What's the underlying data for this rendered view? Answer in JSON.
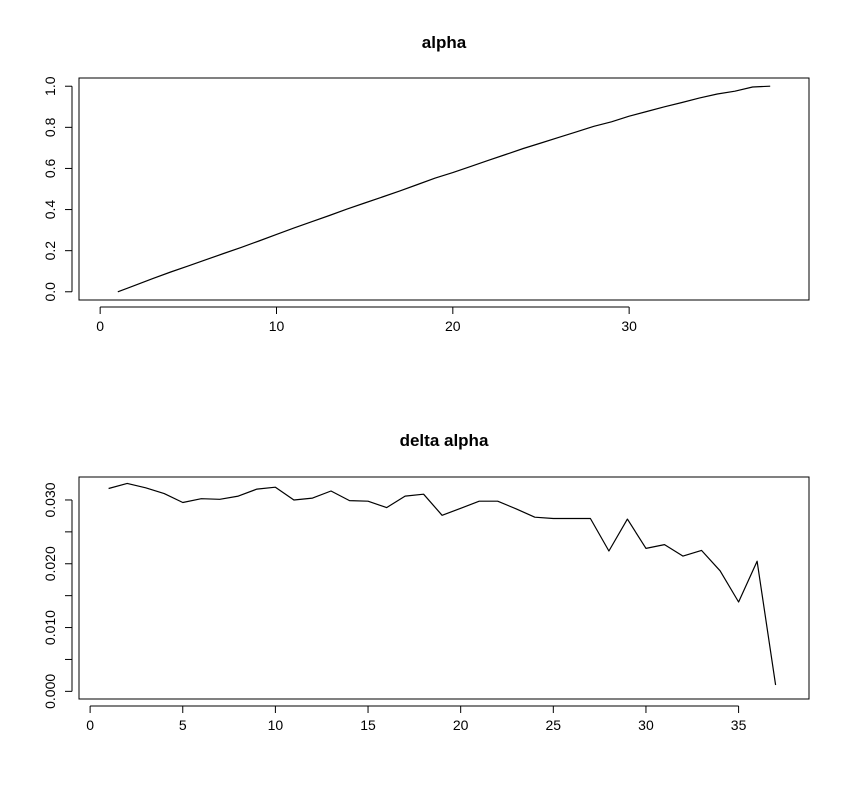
{
  "chart_data": [
    {
      "type": "line",
      "title": "alpha",
      "xlabel": "",
      "ylabel": "",
      "xlim": [
        -1.2,
        40.2
      ],
      "ylim": [
        -0.04,
        1.04
      ],
      "xticks": [
        0,
        10,
        20,
        30
      ],
      "xtick_labels": [
        "0",
        "10",
        "20",
        "30"
      ],
      "yticks": [
        0,
        0.2,
        0.4,
        0.6,
        0.8,
        1.0
      ],
      "ytick_labels": [
        "0.0",
        "0.2",
        "0.4",
        "0.6",
        "0.8",
        "1.0"
      ],
      "grid": false,
      "series": [
        {
          "x": [
            1,
            2,
            3,
            4,
            5,
            6,
            7,
            8,
            9,
            10,
            11,
            12,
            13,
            14,
            15,
            16,
            17,
            18,
            19,
            20,
            21,
            22,
            23,
            24,
            25,
            26,
            27,
            28,
            29,
            30,
            31,
            32,
            33,
            34,
            35,
            36,
            37,
            38
          ],
          "y": [
            0.0,
            0.032,
            0.065,
            0.096,
            0.126,
            0.156,
            0.186,
            0.216,
            0.247,
            0.279,
            0.311,
            0.341,
            0.371,
            0.402,
            0.432,
            0.461,
            0.491,
            0.522,
            0.553,
            0.58,
            0.609,
            0.639,
            0.668,
            0.697,
            0.724,
            0.751,
            0.778,
            0.805,
            0.827,
            0.854,
            0.877,
            0.9,
            0.921,
            0.943,
            0.962,
            0.976,
            0.996,
            1.0
          ]
        }
      ]
    },
    {
      "type": "line",
      "title": "delta alpha",
      "xlabel": "",
      "ylabel": "",
      "xlim": [
        -0.6,
        38.8
      ],
      "ylim": [
        -0.0012,
        0.0336
      ],
      "xticks": [
        0,
        5,
        10,
        15,
        20,
        25,
        30,
        35
      ],
      "xtick_labels": [
        "0",
        "5",
        "10",
        "15",
        "20",
        "25",
        "30",
        "35"
      ],
      "yticks": [
        0,
        0.005,
        0.01,
        0.015,
        0.02,
        0.025,
        0.03
      ],
      "ytick_labels": [
        "0.000",
        "",
        "0.010",
        "",
        "0.020",
        "",
        "0.030"
      ],
      "grid": false,
      "series": [
        {
          "x": [
            1,
            2,
            3,
            4,
            5,
            6,
            7,
            8,
            9,
            10,
            11,
            12,
            13,
            14,
            15,
            16,
            17,
            18,
            19,
            20,
            21,
            22,
            23,
            24,
            25,
            26,
            27,
            28,
            29,
            30,
            31,
            32,
            33,
            34,
            35,
            36,
            37
          ],
          "y": [
            0.0318,
            0.0326,
            0.0319,
            0.031,
            0.0296,
            0.0302,
            0.0301,
            0.0306,
            0.0317,
            0.032,
            0.03,
            0.0303,
            0.0314,
            0.0299,
            0.0298,
            0.0288,
            0.0306,
            0.0309,
            0.0276,
            0.0287,
            0.0298,
            0.0298,
            0.0286,
            0.0273,
            0.0271,
            0.0271,
            0.0271,
            0.022,
            0.027,
            0.0224,
            0.023,
            0.0212,
            0.0221,
            0.0189,
            0.014,
            0.0204,
            0.001
          ]
        }
      ]
    }
  ]
}
